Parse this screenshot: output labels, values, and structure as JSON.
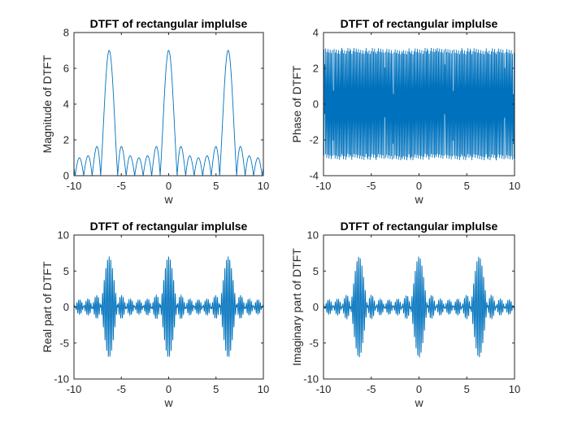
{
  "chart_data": [
    {
      "id": "magnitude",
      "type": "line",
      "title": "DTFT of rectangular implulse",
      "xlabel": "w",
      "ylabel": "Magnitude of DTFT",
      "xlim": [
        -10,
        10
      ],
      "ylim": [
        0,
        8
      ],
      "xticks": [
        "-10",
        "-5",
        "0",
        "5",
        "10"
      ],
      "yticks": [
        "0",
        "2",
        "4",
        "6",
        "8"
      ],
      "series": [
        {
          "signal": "magnitude",
          "N": 7,
          "points": 3000,
          "peak": 7,
          "color": "#0072BD"
        }
      ],
      "grid": false
    },
    {
      "id": "phase",
      "type": "line",
      "title": "DTFT of rectangular implulse",
      "xlabel": "w",
      "ylabel": "Phase of DTFT",
      "xlim": [
        -10,
        10
      ],
      "ylim": [
        -4,
        4
      ],
      "xticks": [
        "-10",
        "-5",
        "0",
        "5",
        "10"
      ],
      "yticks": [
        "-4",
        "-2",
        "0",
        "2",
        "4"
      ],
      "series": [
        {
          "signal": "phase",
          "N": 7,
          "points": 3000,
          "range": [
            -3.1416,
            3.1416
          ],
          "color": "#0072BD"
        }
      ],
      "grid": false
    },
    {
      "id": "real",
      "type": "line",
      "title": "DTFT of rectangular implulse",
      "xlabel": "w",
      "ylabel": "Real part of DTFT",
      "xlim": [
        -10,
        10
      ],
      "ylim": [
        -10,
        10
      ],
      "xticks": [
        "-10",
        "-5",
        "0",
        "5",
        "10"
      ],
      "yticks": [
        "-10",
        "-5",
        "0",
        "5",
        "10"
      ],
      "series": [
        {
          "signal": "real",
          "N": 7,
          "points": 3000,
          "peak": 7,
          "color": "#0072BD"
        }
      ],
      "grid": false
    },
    {
      "id": "imag",
      "type": "line",
      "title": "DTFT of rectangular implulse",
      "xlabel": "w",
      "ylabel": "Imaginary part of DTFT",
      "xlim": [
        -10,
        10
      ],
      "ylim": [
        -10,
        10
      ],
      "xticks": [
        "-10",
        "-5",
        "0",
        "5",
        "10"
      ],
      "yticks": [
        "-10",
        "-5",
        "0",
        "5",
        "10"
      ],
      "series": [
        {
          "signal": "imag",
          "N": 7,
          "points": 3000,
          "peak": 7,
          "color": "#0072BD"
        }
      ],
      "grid": false
    }
  ]
}
